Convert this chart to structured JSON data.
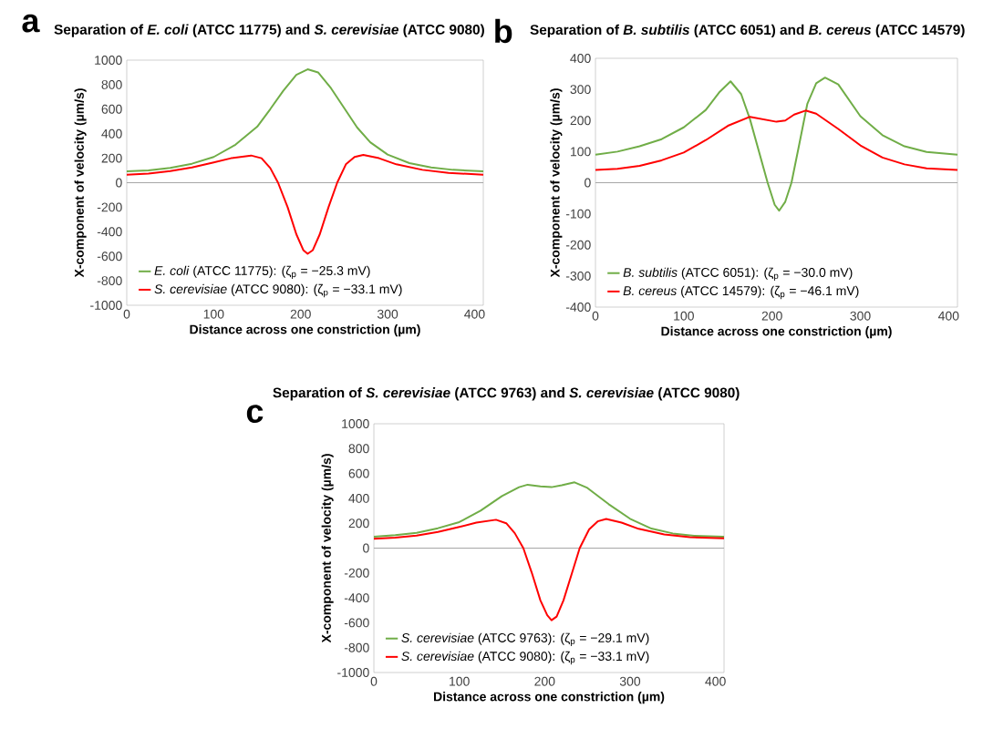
{
  "chart_data": [
    {
      "type": "line",
      "title": "Separation of *E. coli* (ATCC 11775) and *S. cerevisiae* (ATCC 9080)",
      "xlabel": "Distance across one constriction (µm)",
      "ylabel": "X-component of velocity (µm/s)",
      "annotations": [
        "a"
      ],
      "xlim": [
        0,
        410
      ],
      "ylim": [
        -1000,
        1000
      ],
      "xticks": [
        0,
        100,
        200,
        300,
        400
      ],
      "yticks": [
        -1000,
        -800,
        -600,
        -400,
        -200,
        0,
        200,
        400,
        600,
        800,
        1000
      ],
      "legend": "bottom left",
      "ref_lines": [
        {
          "axis": "y",
          "value": 0,
          "color": "#a6a6a6"
        }
      ],
      "series": [
        {
          "name": "*E. coli* (ATCC 11775): (ζ$_{p}$ = −25.3 mV)",
          "color": "#70ad47",
          "x": [
            0,
            25,
            50,
            75,
            100,
            125,
            150,
            165,
            180,
            195,
            208,
            220,
            235,
            250,
            265,
            280,
            300,
            325,
            350,
            375,
            410
          ],
          "values": [
            92,
            100,
            120,
            155,
            210,
            310,
            457,
            600,
            750,
            880,
            925,
            900,
            770,
            610,
            450,
            330,
            230,
            160,
            125,
            105,
            92
          ]
        },
        {
          "name": "*S. cerevisiae* (ATCC 9080): (ζ$_{p}$ = −33.1 mV)",
          "color": "#ff0000",
          "x": [
            0,
            25,
            50,
            75,
            100,
            120,
            143,
            155,
            165,
            174,
            185,
            195,
            203,
            208,
            214,
            222,
            232,
            242,
            252,
            262,
            272,
            290,
            310,
            340,
            370,
            410
          ],
          "values": [
            65,
            75,
            95,
            125,
            165,
            200,
            222,
            200,
            120,
            0,
            -200,
            -420,
            -550,
            -580,
            -550,
            -420,
            -200,
            0,
            150,
            210,
            227,
            200,
            150,
            105,
            80,
            65
          ]
        }
      ]
    },
    {
      "type": "line",
      "title": "Separation of *B. subtilis* (ATCC 6051) and *B. cereus* (ATCC 14579)",
      "xlabel": "Distance across one constriction (µm)",
      "ylabel": "X-component of velocity (µm/s)",
      "annotations": [
        "b"
      ],
      "xlim": [
        0,
        410
      ],
      "ylim": [
        -400,
        400
      ],
      "xticks": [
        0,
        100,
        200,
        300,
        400
      ],
      "yticks": [
        -400,
        -300,
        -200,
        -100,
        0,
        100,
        200,
        300,
        400
      ],
      "legend": "bottom left",
      "ref_lines": [
        {
          "axis": "y",
          "value": 0,
          "color": "#a6a6a6"
        }
      ],
      "series": [
        {
          "name": "*B. subtilis* (ATCC 6051): (ζ$_{p}$ = −30.0 mV)",
          "color": "#70ad47",
          "x": [
            0,
            25,
            50,
            75,
            100,
            125,
            140,
            153,
            165,
            175,
            185,
            195,
            203,
            208,
            215,
            222,
            230,
            240,
            250,
            260,
            275,
            300,
            325,
            350,
            375,
            410
          ],
          "values": [
            90,
            100,
            117,
            140,
            178,
            234,
            290,
            326,
            285,
            204,
            102,
            0,
            -71,
            -90,
            -61,
            0,
            112,
            254,
            320,
            338,
            316,
            214,
            153,
            117,
            99,
            90
          ]
        },
        {
          "name": "*B. cereus* (ATCC 14579): (ζ$_{p}$ = −46.1 mV)",
          "color": "#ff0000",
          "x": [
            0,
            25,
            50,
            75,
            100,
            125,
            150,
            175,
            190,
            205,
            215,
            225,
            238,
            250,
            275,
            300,
            325,
            350,
            375,
            410
          ],
          "values": [
            41,
            45,
            54,
            72,
            97,
            137,
            183,
            212,
            204,
            196,
            200,
            219,
            232,
            222,
            173,
            120,
            81,
            59,
            46,
            41
          ]
        }
      ]
    },
    {
      "type": "line",
      "title": "Separation of *S. cerevisiae* (ATCC 9763) and *S. cerevisiae* (ATCC 9080)",
      "xlabel": "Distance across one constriction (µm)",
      "ylabel": "X-component of velocity (µm/s)",
      "annotations": [
        "c"
      ],
      "xlim": [
        0,
        410
      ],
      "ylim": [
        -1000,
        1000
      ],
      "xticks": [
        0,
        100,
        200,
        300,
        400
      ],
      "yticks": [
        -1000,
        -800,
        -600,
        -400,
        -200,
        0,
        200,
        400,
        600,
        800,
        1000
      ],
      "legend": "bottom left",
      "ref_lines": [
        {
          "axis": "y",
          "value": 0,
          "color": "#a6a6a6"
        }
      ],
      "series": [
        {
          "name": "*S. cerevisiae* (ATCC 9763): (ζ$_{p}$ = −29.1 mV)",
          "color": "#70ad47",
          "x": [
            0,
            25,
            50,
            75,
            100,
            125,
            150,
            170,
            180,
            195,
            208,
            220,
            235,
            250,
            275,
            300,
            325,
            350,
            375,
            410
          ],
          "values": [
            92,
            105,
            123,
            160,
            209,
            301,
            419,
            490,
            510,
            497,
            490,
            505,
            529,
            484,
            353,
            236,
            157,
            118,
            99,
            92
          ]
        },
        {
          "name": "*S. cerevisiae* (ATCC 9080): (ζ$_{p}$ = −33.1 mV)",
          "color": "#ff0000",
          "x": [
            0,
            25,
            50,
            75,
            100,
            120,
            143,
            155,
            165,
            175,
            185,
            195,
            203,
            208,
            214,
            222,
            232,
            241,
            252,
            262,
            272,
            290,
            310,
            340,
            370,
            410
          ],
          "values": [
            75,
            85,
            100,
            130,
            170,
            205,
            228,
            200,
            120,
            0,
            -200,
            -420,
            -540,
            -580,
            -550,
            -420,
            -200,
            0,
            150,
            215,
            235,
            205,
            155,
            110,
            88,
            78
          ]
        }
      ]
    }
  ]
}
